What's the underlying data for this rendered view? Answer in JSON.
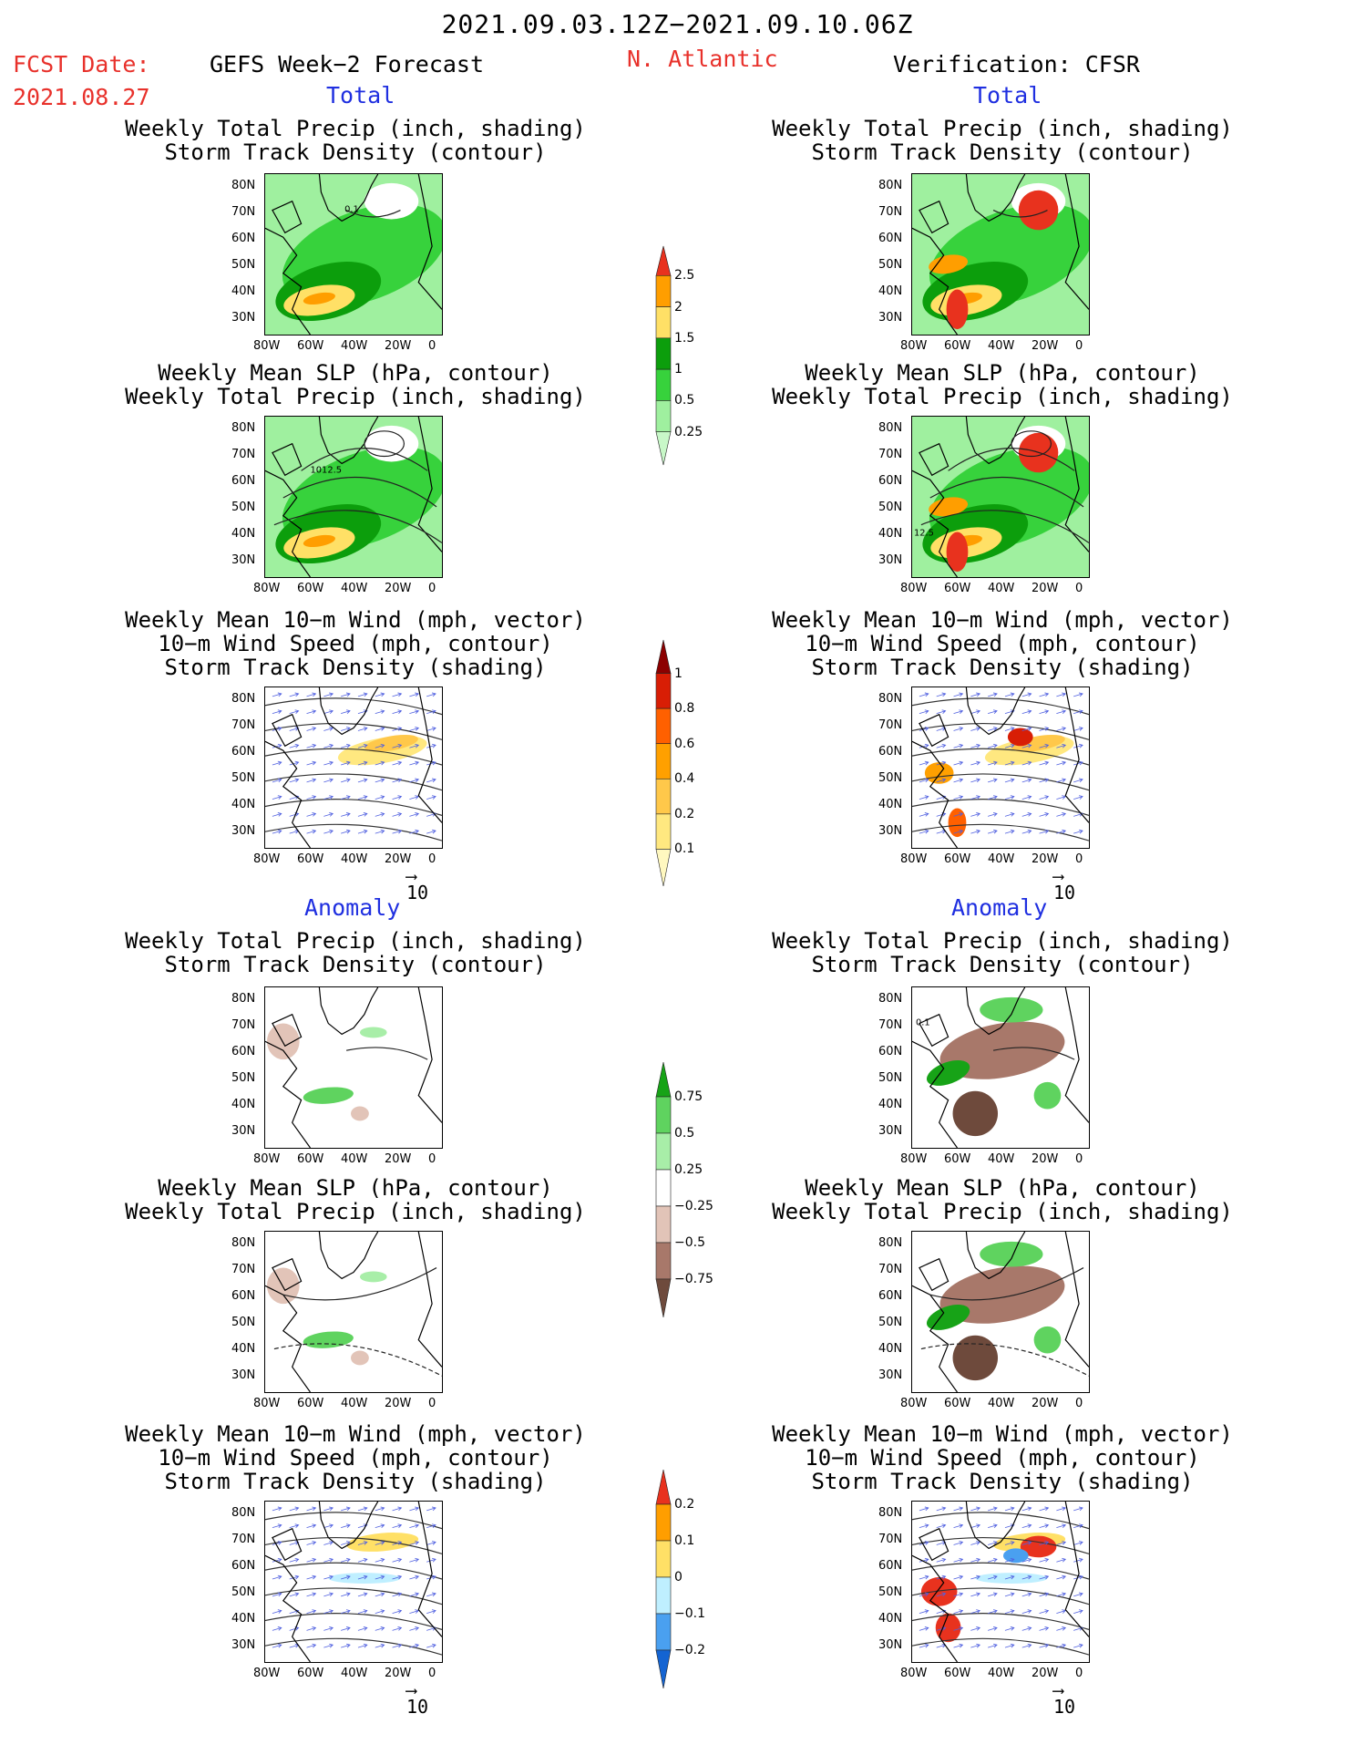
{
  "header": {
    "date_range": "2021.09.03.12Z−2021.09.10.06Z",
    "fcst_label": "FCST Date:",
    "fcst_date": "2021.08.27",
    "left_title": "GEFS Week−2 Forecast",
    "region": "N. Atlantic",
    "right_title": "Verification: CFSR"
  },
  "sections": {
    "total": "Total",
    "anomaly": "Anomaly"
  },
  "panel_titles": {
    "precip_storm": "Weekly Total Precip (inch, shading)\nStorm Track Density (contour)",
    "slp_precip": "Weekly Mean SLP (hPa, contour)\nWeekly Total Precip (inch, shading)",
    "wind_storm": "Weekly Mean 10−m Wind (mph, vector)\n10−m Wind Speed (mph, contour)\nStorm Track Density (shading)"
  },
  "axes": {
    "lat_ticks": [
      "80N",
      "70N",
      "60N",
      "50N",
      "40N",
      "30N"
    ],
    "lon_ticks": [
      "80W",
      "60W",
      "40W",
      "20W",
      "0"
    ]
  },
  "map_labels": {
    "fcst_total_precip_contour": "0.1",
    "fcst_total_slp_contour": "1012.5",
    "ver_total_slp_contour": "12.5",
    "ver_anom_precip_contour": "0.1"
  },
  "vector_ref": "10",
  "colorbars": {
    "precip_total": {
      "labels": [
        "2.5",
        "2",
        "1.5",
        "1",
        "0.5",
        "0.25"
      ],
      "colors": [
        "#e8321e",
        "#ff9e00",
        "#ffe066",
        "#0c9e0c",
        "#37d23c",
        "#9ff09f",
        "#c8f7c8"
      ]
    },
    "storm_total": {
      "labels": [
        "1",
        "0.8",
        "0.6",
        "0.4",
        "0.2",
        "0.1"
      ],
      "colors": [
        "#8c0000",
        "#d81e05",
        "#ff6000",
        "#ffa000",
        "#ffc84a",
        "#ffe880",
        "#fff8c0"
      ]
    },
    "precip_anom": {
      "labels": [
        "0.75",
        "0.5",
        "0.25",
        "−0.25",
        "−0.5",
        "−0.75"
      ],
      "colors": [
        "#17a317",
        "#5fd35f",
        "#a8eea8",
        "#ffffff",
        "#e2c4b8",
        "#a8786a",
        "#6e4a3c"
      ]
    },
    "storm_anom": {
      "labels": [
        "0.2",
        "0.1",
        "0",
        "−0.1",
        "−0.2"
      ],
      "colors": [
        "#e8321e",
        "#ff9e00",
        "#ffe066",
        "#bfefff",
        "#4aa0f0",
        "#1464d2"
      ]
    }
  }
}
